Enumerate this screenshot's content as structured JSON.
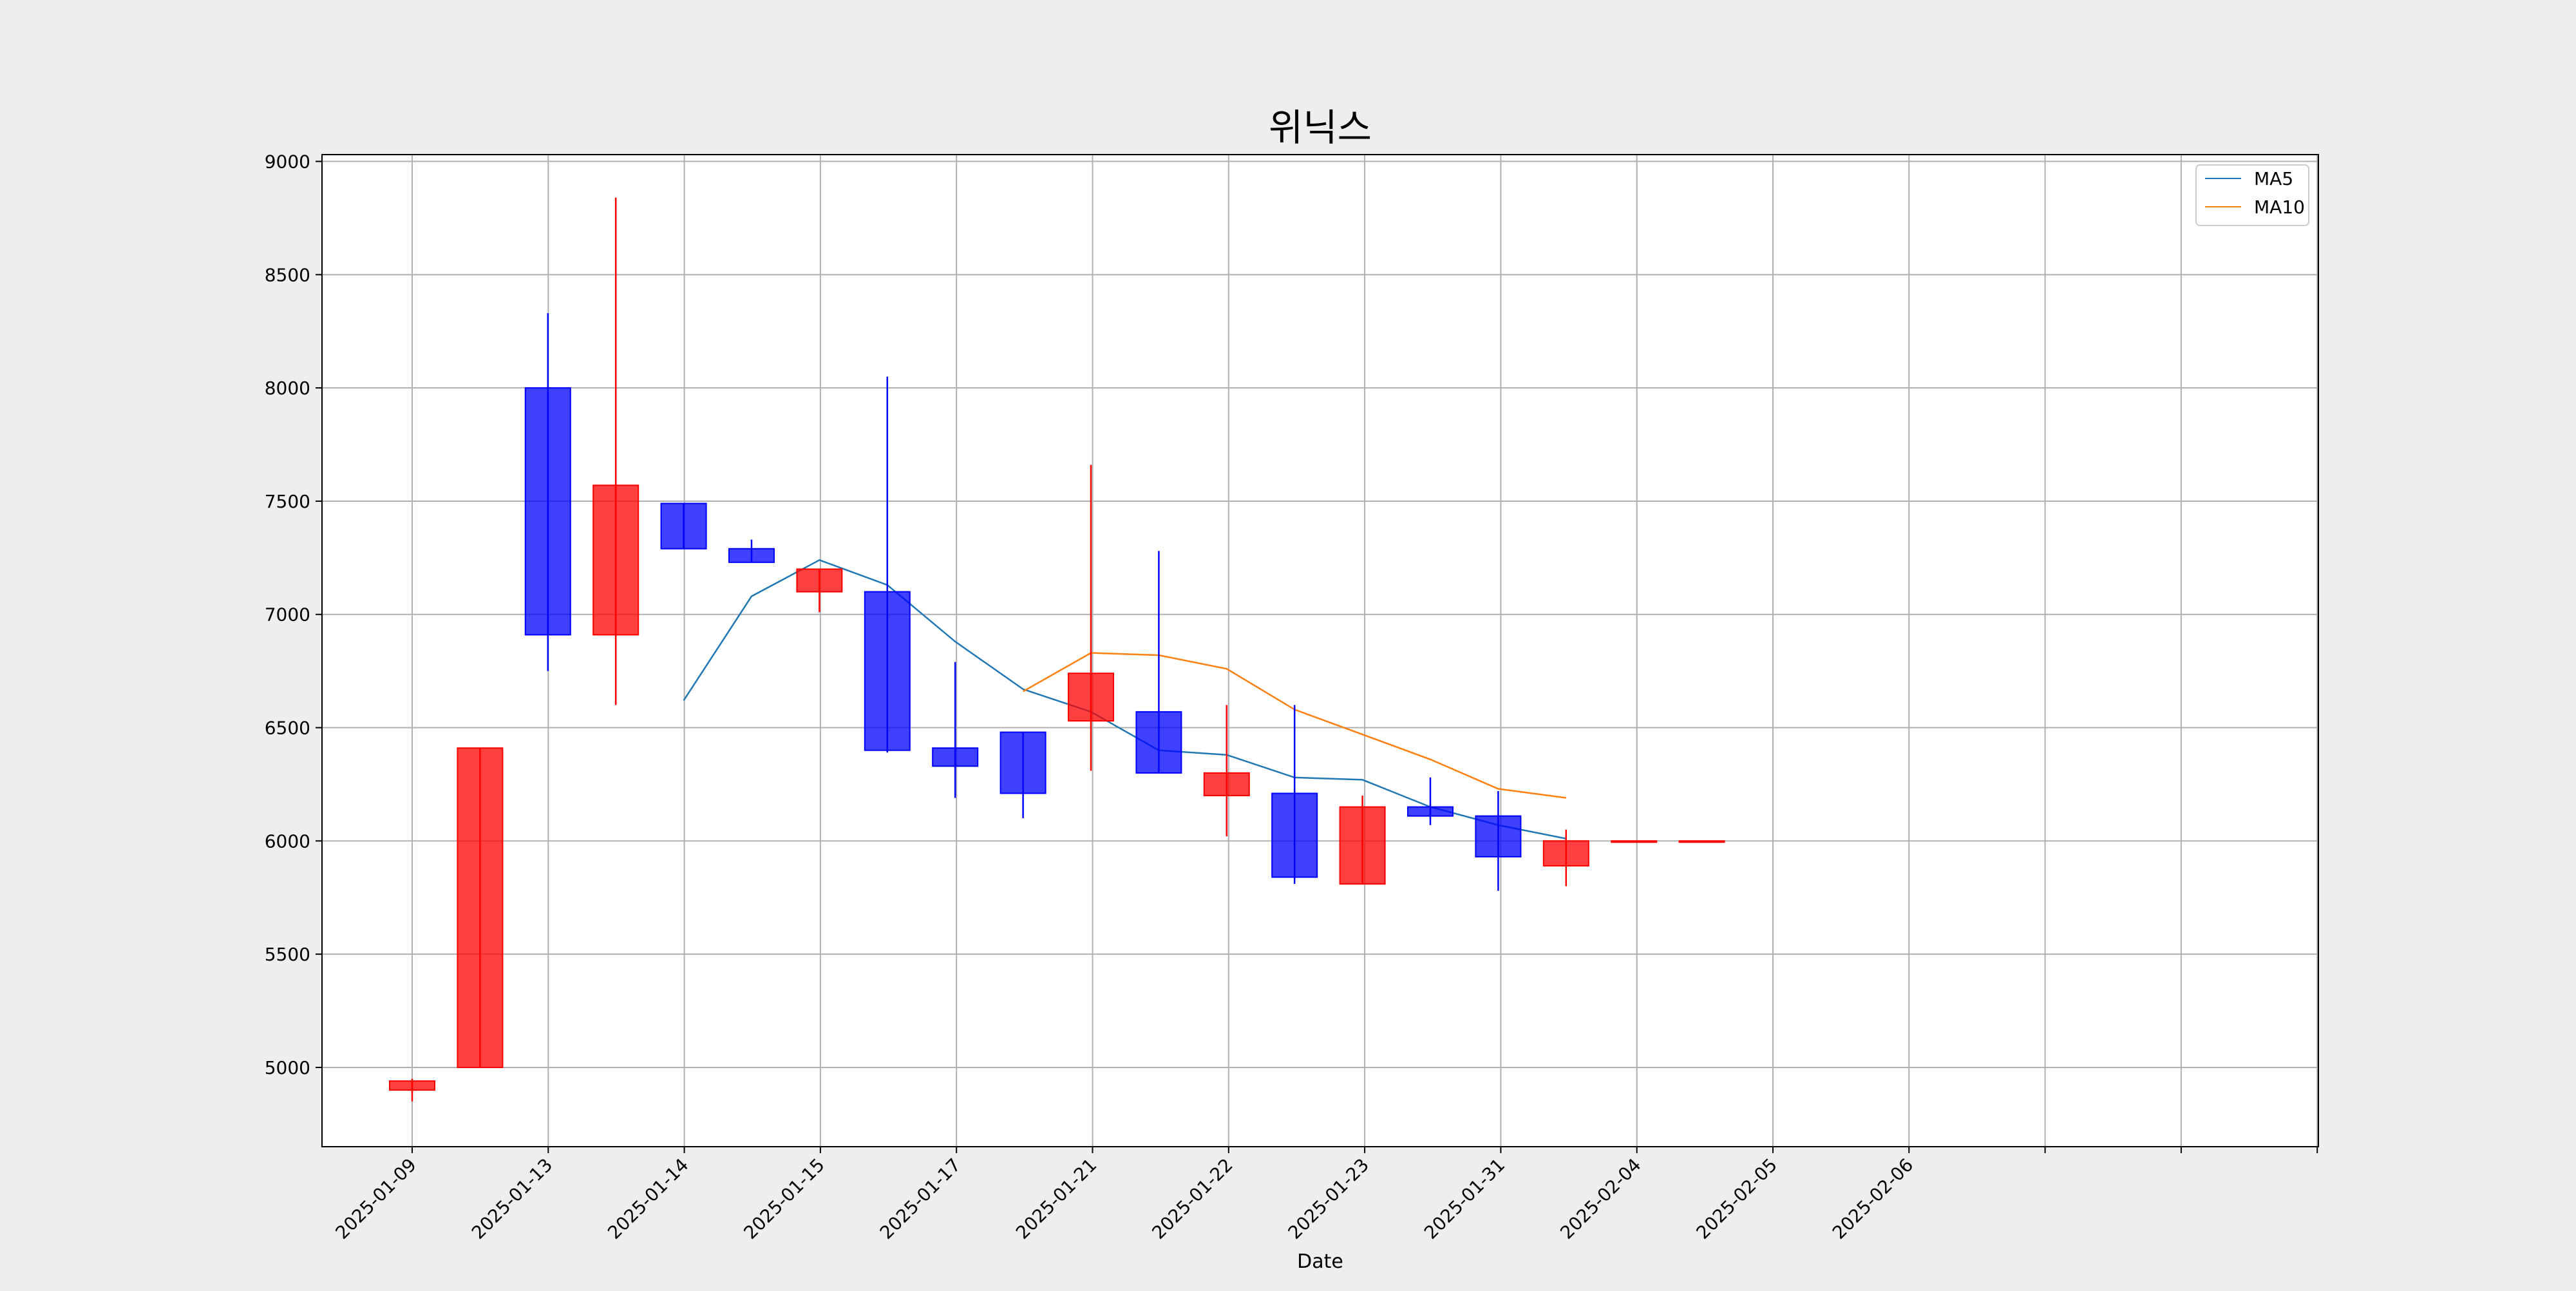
{
  "chart_data": {
    "type": "candlestick",
    "title": "위닉스",
    "xlabel": "Date",
    "ylabel": "",
    "ylim": [
      4650,
      9030
    ],
    "yticks": [
      5000,
      5500,
      6000,
      6500,
      7000,
      7500,
      8000,
      8500,
      9000
    ],
    "x_tick_labels": [
      "2025-01-09",
      "2025-01-13",
      "2025-01-14",
      "2025-01-15",
      "2025-01-17",
      "2025-01-21",
      "2025-01-22",
      "2025-01-23",
      "2025-01-31",
      "2025-02-04",
      "2025-02-05",
      "2025-02-06",
      "",
      "",
      ""
    ],
    "grid": true,
    "legend_position": "top-right",
    "colors": {
      "up": "#ff0000",
      "down": "#0000ff",
      "ma5": "#1f77b4",
      "ma10": "#ff7f0e"
    },
    "candles": [
      {
        "open": 4900,
        "high": 4950,
        "low": 4850,
        "close": 4940
      },
      {
        "open": 5000,
        "high": 6410,
        "low": 5000,
        "close": 6410
      },
      {
        "open": 8000,
        "high": 8330,
        "low": 6750,
        "close": 6910
      },
      {
        "open": 6910,
        "high": 8840,
        "low": 6600,
        "close": 7570
      },
      {
        "open": 7490,
        "high": 7490,
        "low": 7290,
        "close": 7290
      },
      {
        "open": 7290,
        "high": 7330,
        "low": 7230,
        "close": 7230
      },
      {
        "open": 7100,
        "high": 7200,
        "low": 7010,
        "close": 7200
      },
      {
        "open": 7100,
        "high": 8050,
        "low": 6390,
        "close": 6400
      },
      {
        "open": 6410,
        "high": 6790,
        "low": 6190,
        "close": 6330
      },
      {
        "open": 6480,
        "high": 6480,
        "low": 6100,
        "close": 6210
      },
      {
        "open": 6530,
        "high": 7660,
        "low": 6310,
        "close": 6740
      },
      {
        "open": 6570,
        "high": 7280,
        "low": 6300,
        "close": 6300
      },
      {
        "open": 6200,
        "high": 6600,
        "low": 6020,
        "close": 6300
      },
      {
        "open": 6210,
        "high": 6600,
        "low": 5810,
        "close": 5840
      },
      {
        "open": 5810,
        "high": 6200,
        "low": 5810,
        "close": 6150
      },
      {
        "open": 6150,
        "high": 6280,
        "low": 6070,
        "close": 6110
      },
      {
        "open": 6110,
        "high": 6220,
        "low": 5780,
        "close": 5930
      },
      {
        "open": 5890,
        "high": 6050,
        "low": 5800,
        "close": 6000
      },
      {
        "open": 6000,
        "high": 6000,
        "low": 6000,
        "close": 6000
      },
      {
        "open": 6000,
        "high": 6000,
        "low": 6000,
        "close": 6000
      }
    ],
    "series": [
      {
        "name": "MA5",
        "values": [
          null,
          null,
          null,
          null,
          6620,
          7080,
          7240,
          7130,
          6880,
          6670,
          6570,
          6400,
          6380,
          6280,
          6270,
          6150,
          6070,
          6010,
          null,
          null
        ]
      },
      {
        "name": "MA10",
        "values": [
          null,
          null,
          null,
          null,
          null,
          null,
          null,
          null,
          null,
          6660,
          6830,
          6820,
          6760,
          6580,
          6470,
          6360,
          6230,
          6190,
          null,
          null
        ]
      }
    ]
  }
}
